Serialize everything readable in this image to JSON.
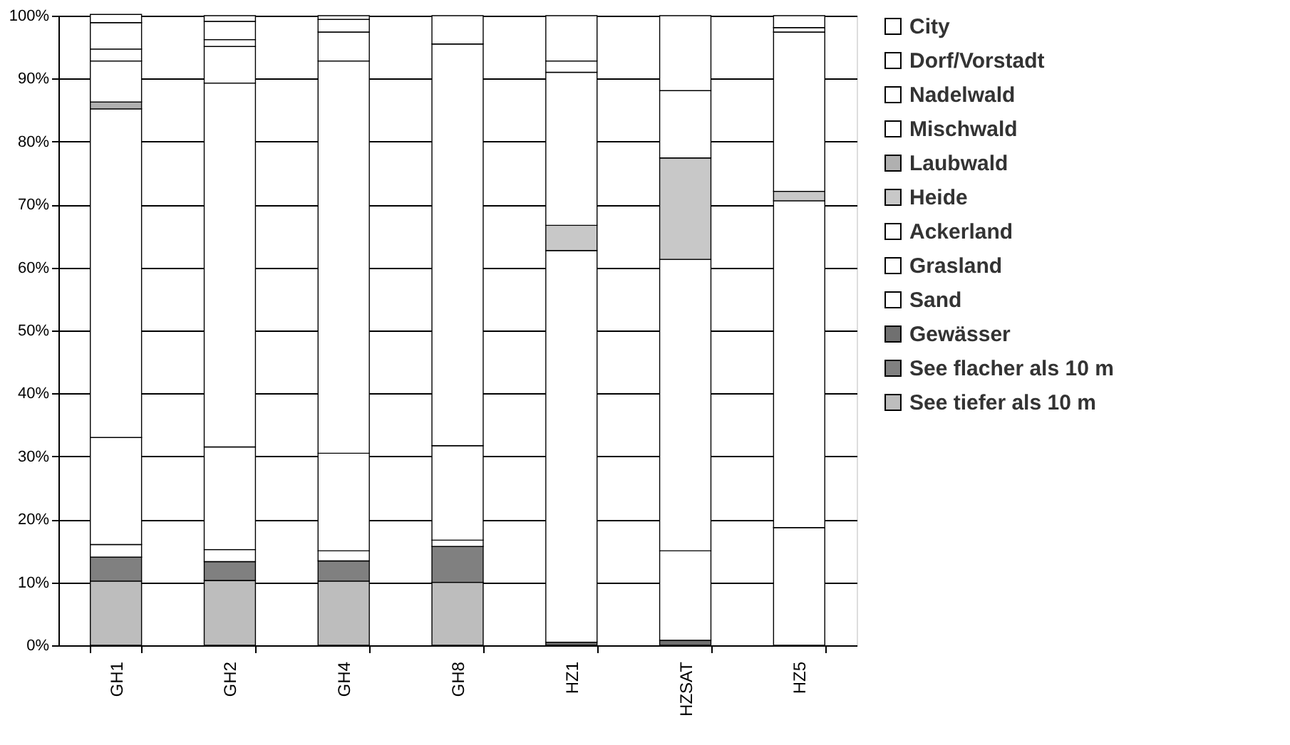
{
  "chart_data": {
    "type": "bar",
    "stacked": true,
    "categories": [
      "GH1",
      "GH2",
      "GH4",
      "GH8",
      "HZ1",
      "HZSAT",
      "HZ5"
    ],
    "series": [
      {
        "name": "See tiefer als 10 m",
        "color": "#bdbdbd",
        "values": [
          10.2,
          10.3,
          10.2,
          10.0,
          null,
          null,
          null
        ]
      },
      {
        "name": "See flacher als 10 m",
        "color": "#808080",
        "values": [
          3.8,
          3.0,
          3.2,
          5.7,
          null,
          null,
          null
        ]
      },
      {
        "name": "Gewässer",
        "color": "#707070",
        "values": [
          null,
          null,
          null,
          null,
          0.5,
          0.8,
          null
        ]
      },
      {
        "name": "Sand",
        "color": "#ffffff",
        "values": [
          2.0,
          1.9,
          1.6,
          1.0,
          null,
          14.2,
          18.7
        ]
      },
      {
        "name": "Grasland",
        "color": "#ffffff",
        "values": [
          17.0,
          16.3,
          15.5,
          15.0,
          62.2,
          46.3,
          51.9
        ]
      },
      {
        "name": "Ackerland",
        "color": "#ffffff",
        "values": [
          52.2,
          57.8,
          62.3,
          63.8,
          null,
          null,
          null
        ]
      },
      {
        "name": "Heide",
        "color": "#c8c8c8",
        "values": [
          null,
          null,
          null,
          null,
          4.0,
          16.1,
          1.5
        ]
      },
      {
        "name": "Laubwald",
        "color": "#b0b0b0",
        "values": [
          1.1,
          null,
          null,
          null,
          null,
          null,
          null
        ]
      },
      {
        "name": "Mischwald",
        "color": "#ffffff",
        "values": [
          6.5,
          5.8,
          4.6,
          null,
          24.3,
          10.7,
          25.3
        ]
      },
      {
        "name": "Nadelwald",
        "color": "#ffffff",
        "values": [
          1.9,
          1.1,
          2.0,
          null,
          1.8,
          null,
          0.7
        ]
      },
      {
        "name": "Dorf/Vorstadt",
        "color": "#ffffff",
        "values": [
          4.2,
          2.9,
          null,
          4.5,
          7.2,
          11.9,
          null
        ]
      },
      {
        "name": "City",
        "color": "#ffffff",
        "values": [
          1.3,
          0.9,
          0.6,
          null,
          null,
          null,
          1.9
        ]
      }
    ],
    "ylim": [
      0,
      100
    ],
    "yticks": [
      {
        "value": 0,
        "label": "0%"
      },
      {
        "value": 10,
        "label": "10%"
      },
      {
        "value": 20,
        "label": "20%"
      },
      {
        "value": 30,
        "label": "30%"
      },
      {
        "value": 40,
        "label": "40%"
      },
      {
        "value": 50,
        "label": "50%"
      },
      {
        "value": 60,
        "label": "60%"
      },
      {
        "value": 70,
        "label": "70%"
      },
      {
        "value": 80,
        "label": "80%"
      },
      {
        "value": 90,
        "label": "90%"
      },
      {
        "value": 100,
        "label": "100%"
      }
    ],
    "grid": "y",
    "legend": "right"
  }
}
